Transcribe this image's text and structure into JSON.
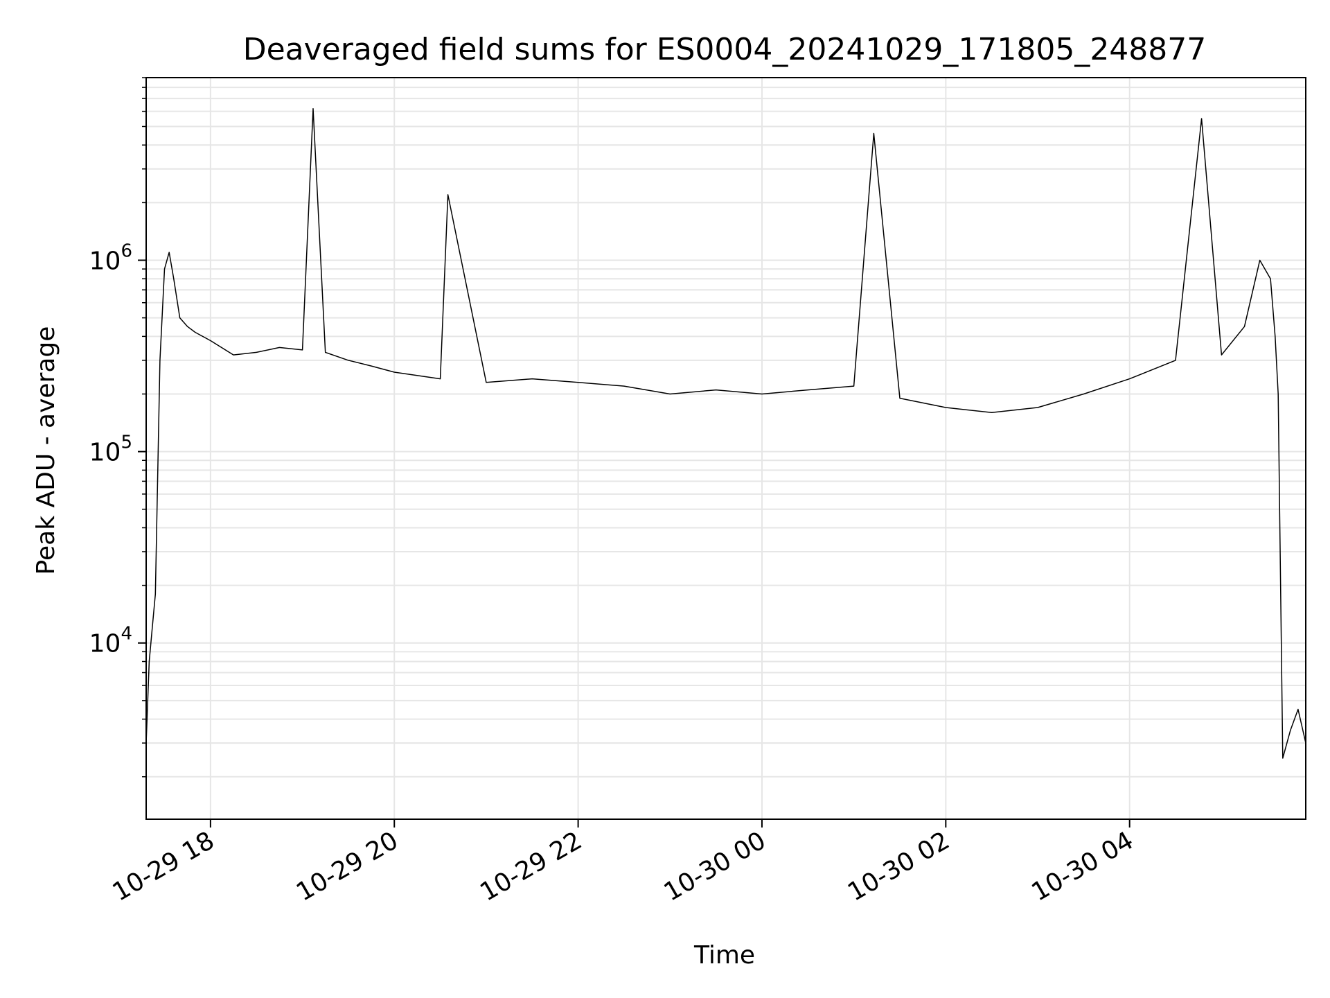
{
  "chart_data": {
    "type": "line",
    "title": "Deaveraged field sums for ES0004_20241029_171805_248877",
    "xlabel": "Time",
    "ylabel": "Peak ADU - average",
    "xlim": [
      "2024-10-29 17:18",
      "2024-10-30 05:55"
    ],
    "ylim": [
      1200,
      9000000
    ],
    "yscale": "log",
    "grid": true,
    "x_ticks": [
      "10-29 18",
      "10-29 20",
      "10-29 22",
      "10-30 00",
      "10-30 02",
      "10-30 04"
    ],
    "x_tick_values": [
      "2024-10-29 18:00",
      "2024-10-29 20:00",
      "2024-10-29 22:00",
      "2024-10-30 00:00",
      "2024-10-30 02:00",
      "2024-10-30 04:00"
    ],
    "y_ticks": [
      {
        "base": "10",
        "exp": "4",
        "value": 10000
      },
      {
        "base": "10",
        "exp": "5",
        "value": 100000
      },
      {
        "base": "10",
        "exp": "6",
        "value": 1000000
      }
    ],
    "series": [
      {
        "color": "#000000",
        "x": [
          "2024-10-29 17:18",
          "2024-10-29 17:20",
          "2024-10-29 17:22",
          "2024-10-29 17:24",
          "2024-10-29 17:27",
          "2024-10-29 17:30",
          "2024-10-29 17:33",
          "2024-10-29 17:36",
          "2024-10-29 17:40",
          "2024-10-29 17:45",
          "2024-10-29 17:50",
          "2024-10-29 18:00",
          "2024-10-29 18:15",
          "2024-10-29 18:30",
          "2024-10-29 18:45",
          "2024-10-29 19:00",
          "2024-10-29 19:07",
          "2024-10-29 19:15",
          "2024-10-29 19:30",
          "2024-10-29 19:45",
          "2024-10-29 20:00",
          "2024-10-29 20:30",
          "2024-10-29 20:35",
          "2024-10-29 21:00",
          "2024-10-29 21:30",
          "2024-10-29 22:00",
          "2024-10-29 22:30",
          "2024-10-29 23:00",
          "2024-10-29 23:30",
          "2024-10-30 00:00",
          "2024-10-30 00:30",
          "2024-10-30 01:00",
          "2024-10-30 01:13",
          "2024-10-30 01:30",
          "2024-10-30 02:00",
          "2024-10-30 02:30",
          "2024-10-30 03:00",
          "2024-10-30 03:30",
          "2024-10-30 04:00",
          "2024-10-30 04:30",
          "2024-10-30 04:47",
          "2024-10-30 05:00",
          "2024-10-30 05:15",
          "2024-10-30 05:25",
          "2024-10-30 05:32",
          "2024-10-30 05:35",
          "2024-10-30 05:37",
          "2024-10-30 05:40",
          "2024-10-30 05:45",
          "2024-10-30 05:50",
          "2024-10-30 05:55"
        ],
        "y": [
          3000,
          8000,
          12000,
          18000,
          300000,
          900000,
          1100000,
          800000,
          500000,
          450000,
          420000,
          380000,
          320000,
          330000,
          350000,
          340000,
          6200000,
          330000,
          300000,
          280000,
          260000,
          240000,
          2200000,
          230000,
          240000,
          230000,
          220000,
          200000,
          210000,
          200000,
          210000,
          220000,
          4600000,
          190000,
          170000,
          160000,
          170000,
          200000,
          240000,
          300000,
          5500000,
          320000,
          450000,
          1000000,
          800000,
          400000,
          200000,
          2500,
          3500,
          4500,
          3000
        ]
      }
    ]
  }
}
